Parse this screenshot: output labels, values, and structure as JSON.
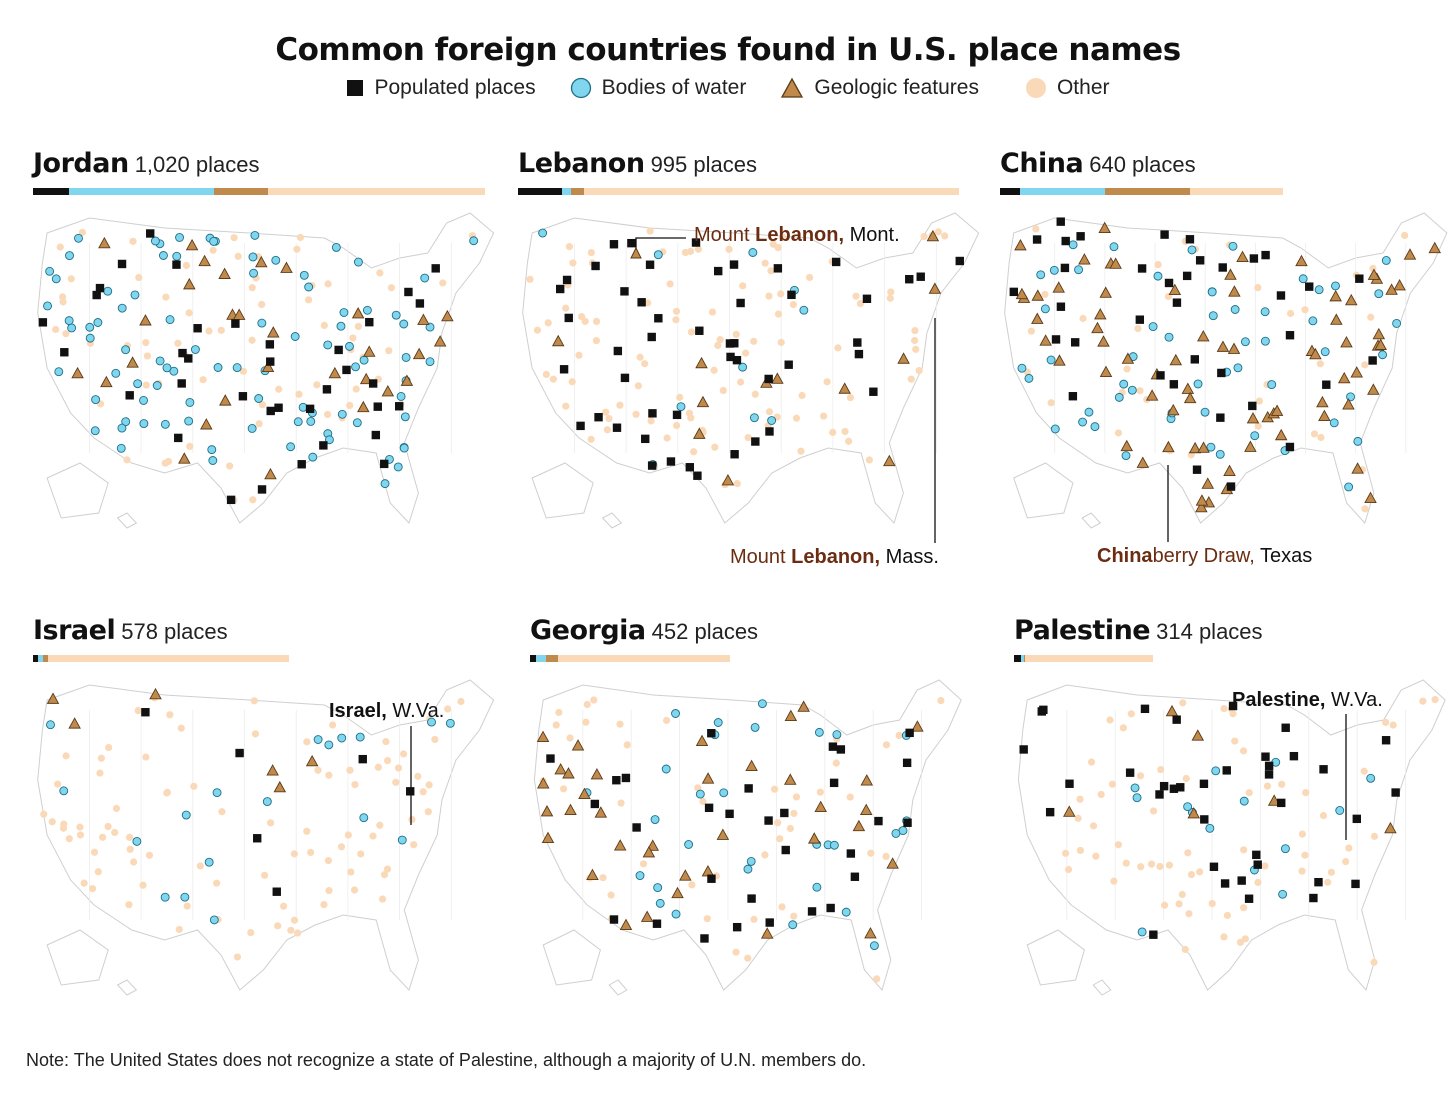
{
  "title": "Common foreign countries found in U.S. place names",
  "legend": [
    {
      "key": "populated",
      "label": "Populated places",
      "color": "#111111",
      "shape": "square"
    },
    {
      "key": "water",
      "label": "Bodies of water",
      "color": "#7fd6ee",
      "shape": "circle"
    },
    {
      "key": "geologic",
      "label": "Geologic features",
      "color": "#c08a4c",
      "shape": "triangle"
    },
    {
      "key": "other",
      "label": "Other",
      "color": "#fad9b8",
      "shape": "circle"
    }
  ],
  "panels": [
    {
      "name": "Jordan",
      "count": "1,020 places",
      "shares": [
        0.08,
        0.32,
        0.12,
        0.48
      ],
      "bar_scale": 1.0,
      "density": {
        "populated": 0.3,
        "water": 0.75,
        "geologic": 0.25,
        "other": 0.55
      }
    },
    {
      "name": "Lebanon",
      "count": "995 places",
      "shares": [
        0.1,
        0.02,
        0.03,
        0.85
      ],
      "bar_scale": 0.975,
      "density": {
        "populated": 0.4,
        "water": 0.08,
        "geologic": 0.1,
        "other": 0.85
      },
      "annotations": [
        {
          "pre": "Mount ",
          "bold": "Lebanon,",
          "post": " Mont."
        },
        {
          "pre": "Mount ",
          "bold": "Lebanon,",
          "post": " Mass."
        }
      ]
    },
    {
      "name": "China",
      "count": "640 places",
      "shares": [
        0.07,
        0.3,
        0.3,
        0.33
      ],
      "bar_scale": 0.627,
      "density": {
        "populated": 0.3,
        "water": 0.45,
        "geologic": 0.6,
        "other": 0.3
      },
      "annotations": [
        {
          "bold": "China",
          "post_geo": "berry Draw,",
          "post": " Texas"
        }
      ]
    },
    {
      "name": "Israel",
      "count": "578 places",
      "shares": [
        0.02,
        0.02,
        0.02,
        0.94
      ],
      "bar_scale": 0.567,
      "density": {
        "populated": 0.05,
        "water": 0.15,
        "geologic": 0.05,
        "other": 0.75
      },
      "annotations": [
        {
          "bold": "Israel,",
          "post": " W.Va."
        }
      ]
    },
    {
      "name": "Georgia",
      "count": "452 places",
      "shares": [
        0.03,
        0.05,
        0.06,
        0.86
      ],
      "bar_scale": 0.443,
      "density": {
        "populated": 0.25,
        "water": 0.25,
        "geologic": 0.3,
        "other": 0.4
      }
    },
    {
      "name": "Palestine",
      "count": "314 places",
      "shares": [
        0.05,
        0.02,
        0.01,
        0.92
      ],
      "bar_scale": 0.308,
      "density": {
        "populated": 0.3,
        "water": 0.12,
        "geologic": 0.05,
        "other": 0.55
      },
      "annotations": [
        {
          "bold": "Palestine,",
          "post": " W.Va."
        }
      ]
    }
  ],
  "note": "Note: The United States does not recognize a state of Palestine, although a majority of U.N. members do."
}
